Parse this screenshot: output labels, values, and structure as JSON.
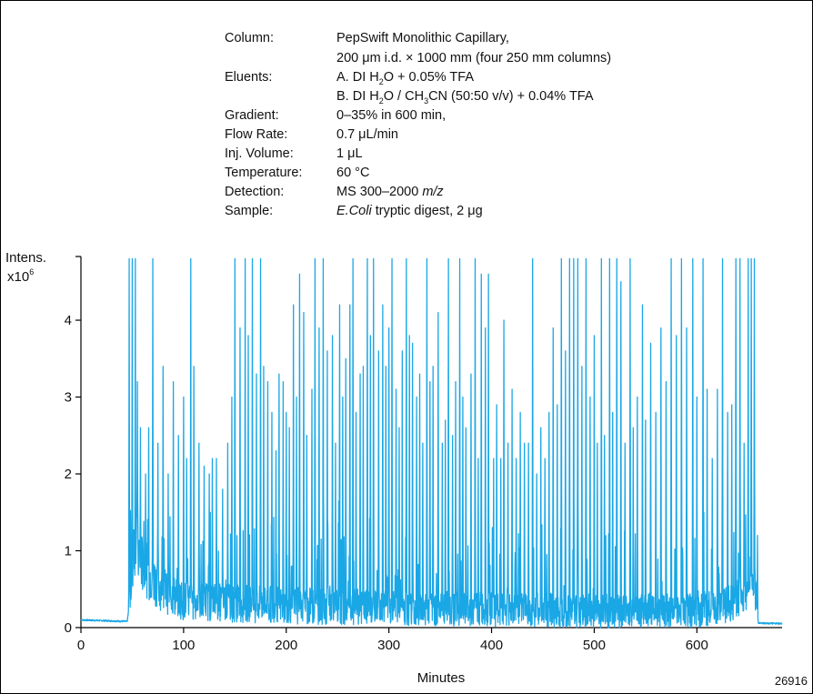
{
  "info": {
    "column_label": "Column:",
    "column_value_1": "PepSwift Monolithic Capillary,",
    "column_value_2": "200 μm i.d. × 1000 mm (four 250 mm columns)",
    "eluents_label": "Eluents:",
    "eluent_a": {
      "pre": "A. DI H",
      "sub1": "2",
      "post": "O + 0.05% TFA"
    },
    "eluent_b": {
      "pre": "B. DI H",
      "sub1": "2",
      "mid": "O / CH",
      "sub2": "3",
      "post": "CN (50:50 v/v) + 0.04% TFA"
    },
    "gradient_label": "Gradient:",
    "gradient_value": "0–35%  in 600 min,",
    "flow_label": "Flow Rate:",
    "flow_value": "0.7 μL/min",
    "inj_label": "Inj. Volume:",
    "inj_value": "1 μL",
    "temp_label": "Temperature:",
    "temp_value": "60 °C",
    "detection_label": "Detection:",
    "detection_pre": "MS 300–2000 ",
    "detection_italic": "m/z",
    "sample_label": "Sample:",
    "sample_italic": "E.Coli",
    "sample_post": " tryptic digest, 2 μg"
  },
  "figure_id": "26916",
  "chart_data": {
    "type": "line",
    "title": "",
    "xlabel": "Minutes",
    "ylabel_1": "Intens.",
    "ylabel_2_pre": "x10",
    "ylabel_2_sup": "6",
    "xlim": [
      0,
      683
    ],
    "ylim": [
      0,
      4.9
    ],
    "x_ticks": [
      0,
      100,
      200,
      300,
      400,
      500,
      600
    ],
    "y_ticks": [
      0,
      1,
      2,
      3,
      4
    ],
    "grid": false,
    "line_color": "#1aa7e6",
    "series": [
      {
        "baseline": {
          "x": [
            0,
            45,
            48,
            52,
            60,
            80,
            100,
            150,
            200,
            250,
            300,
            350,
            400,
            450,
            500,
            550,
            600,
            630,
            650,
            655,
            660,
            683
          ],
          "y": [
            0.1,
            0.08,
            0.35,
            1.0,
            0.7,
            0.4,
            0.28,
            0.24,
            0.22,
            0.2,
            0.19,
            0.18,
            0.17,
            0.16,
            0.15,
            0.15,
            0.16,
            0.22,
            0.4,
            0.65,
            0.06,
            0.05
          ]
        },
        "peaks": [
          [
            47,
            4.8
          ],
          [
            50,
            4.8
          ],
          [
            53,
            4.8
          ],
          [
            55,
            3.2
          ],
          [
            58,
            2.6
          ],
          [
            63,
            2.0
          ],
          [
            66,
            2.6
          ],
          [
            70,
            4.8
          ],
          [
            75,
            2.4
          ],
          [
            80,
            3.4
          ],
          [
            85,
            2.0
          ],
          [
            90,
            3.2
          ],
          [
            95,
            2.5
          ],
          [
            100,
            3.0
          ],
          [
            103,
            2.2
          ],
          [
            107,
            4.8
          ],
          [
            110,
            3.4
          ],
          [
            115,
            2.4
          ],
          [
            120,
            2.1
          ],
          [
            125,
            2.0
          ],
          [
            128,
            2.2
          ],
          [
            132,
            2.2
          ],
          [
            138,
            1.8
          ],
          [
            143,
            2.4
          ],
          [
            147,
            3.0
          ],
          [
            150,
            4.8
          ],
          [
            155,
            3.9
          ],
          [
            160,
            4.8
          ],
          [
            163,
            3.8
          ],
          [
            167,
            4.8
          ],
          [
            171,
            3.3
          ],
          [
            175,
            4.8
          ],
          [
            178,
            3.4
          ],
          [
            182,
            3.2
          ],
          [
            186,
            2.8
          ],
          [
            190,
            2.3
          ],
          [
            193,
            3.3
          ],
          [
            197,
            3.2
          ],
          [
            200,
            2.8
          ],
          [
            203,
            2.6
          ],
          [
            207,
            4.2
          ],
          [
            210,
            3.0
          ],
          [
            213,
            4.6
          ],
          [
            217,
            4.1
          ],
          [
            220,
            2.5
          ],
          [
            225,
            3.1
          ],
          [
            228,
            4.8
          ],
          [
            232,
            3.9
          ],
          [
            236,
            4.8
          ],
          [
            240,
            3.6
          ],
          [
            245,
            3.8
          ],
          [
            248,
            2.4
          ],
          [
            252,
            4.2
          ],
          [
            255,
            3.0
          ],
          [
            258,
            3.5
          ],
          [
            262,
            4.2
          ],
          [
            265,
            4.8
          ],
          [
            268,
            2.8
          ],
          [
            272,
            3.3
          ],
          [
            275,
            3.4
          ],
          [
            279,
            4.8
          ],
          [
            282,
            3.8
          ],
          [
            285,
            4.8
          ],
          [
            290,
            3.6
          ],
          [
            294,
            4.2
          ],
          [
            297,
            3.4
          ],
          [
            300,
            3.9
          ],
          [
            303,
            4.8
          ],
          [
            307,
            3.1
          ],
          [
            310,
            2.6
          ],
          [
            313,
            3.6
          ],
          [
            317,
            4.8
          ],
          [
            320,
            3.8
          ],
          [
            323,
            3.7
          ],
          [
            327,
            3.0
          ],
          [
            330,
            3.3
          ],
          [
            333,
            2.4
          ],
          [
            337,
            4.8
          ],
          [
            340,
            3.2
          ],
          [
            343,
            3.4
          ],
          [
            348,
            4.1
          ],
          [
            352,
            2.4
          ],
          [
            355,
            2.7
          ],
          [
            358,
            4.8
          ],
          [
            362,
            2.5
          ],
          [
            365,
            3.2
          ],
          [
            369,
            4.8
          ],
          [
            372,
            3.0
          ],
          [
            375,
            2.6
          ],
          [
            380,
            3.3
          ],
          [
            384,
            4.8
          ],
          [
            387,
            2.2
          ],
          [
            390,
            4.6
          ],
          [
            394,
            3.9
          ],
          [
            397,
            4.6
          ],
          [
            402,
            2.2
          ],
          [
            405,
            2.9
          ],
          [
            409,
            2.2
          ],
          [
            412,
            4.0
          ],
          [
            416,
            2.4
          ],
          [
            420,
            3.1
          ],
          [
            424,
            2.2
          ],
          [
            428,
            2.8
          ],
          [
            432,
            2.4
          ],
          [
            436,
            2.4
          ],
          [
            440,
            4.8
          ],
          [
            444,
            2.0
          ],
          [
            448,
            2.6
          ],
          [
            452,
            2.2
          ],
          [
            456,
            2.8
          ],
          [
            460,
            3.9
          ],
          [
            464,
            2.9
          ],
          [
            468,
            4.8
          ],
          [
            472,
            3.6
          ],
          [
            476,
            4.8
          ],
          [
            480,
            4.8
          ],
          [
            484,
            4.8
          ],
          [
            488,
            3.4
          ],
          [
            492,
            4.8
          ],
          [
            496,
            3.0
          ],
          [
            500,
            3.8
          ],
          [
            503,
            2.4
          ],
          [
            507,
            4.8
          ],
          [
            510,
            2.5
          ],
          [
            515,
            4.8
          ],
          [
            518,
            2.8
          ],
          [
            522,
            4.8
          ],
          [
            526,
            4.5
          ],
          [
            530,
            2.4
          ],
          [
            535,
            4.8
          ],
          [
            538,
            2.6
          ],
          [
            542,
            3.0
          ],
          [
            547,
            4.2
          ],
          [
            550,
            2.7
          ],
          [
            555,
            3.7
          ],
          [
            560,
            2.8
          ],
          [
            565,
            3.9
          ],
          [
            570,
            3.2
          ],
          [
            575,
            4.8
          ],
          [
            580,
            3.8
          ],
          [
            585,
            4.8
          ],
          [
            590,
            3.9
          ],
          [
            596,
            4.8
          ],
          [
            600,
            3.0
          ],
          [
            606,
            4.8
          ],
          [
            610,
            3.1
          ],
          [
            615,
            2.2
          ],
          [
            620,
            3.1
          ],
          [
            625,
            4.8
          ],
          [
            630,
            2.8
          ],
          [
            634,
            2.9
          ],
          [
            638,
            4.8
          ],
          [
            642,
            4.8
          ],
          [
            646,
            2.4
          ],
          [
            650,
            4.8
          ],
          [
            653,
            4.8
          ],
          [
            656,
            4.8
          ],
          [
            659,
            1.2
          ]
        ]
      }
    ]
  }
}
